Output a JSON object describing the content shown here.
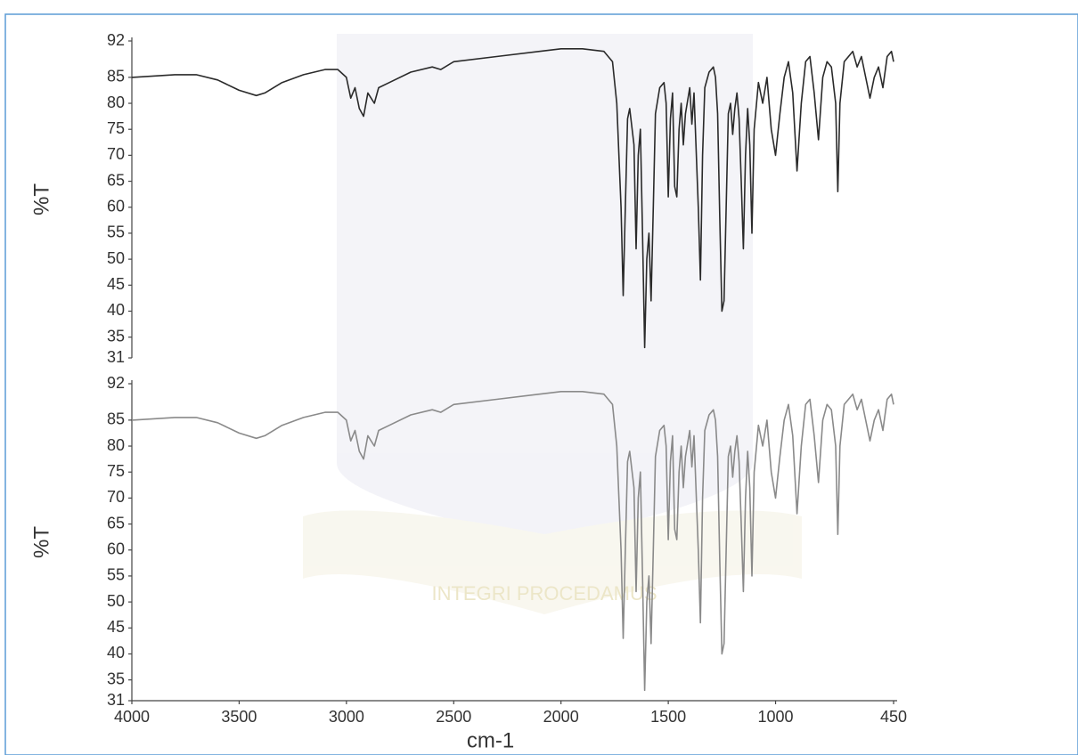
{
  "chart_data": [
    {
      "type": "line",
      "ylabel": "%T",
      "xlim": [
        4000,
        450
      ],
      "ylim": [
        31,
        92
      ],
      "yticks": [
        31,
        35,
        40,
        45,
        50,
        55,
        60,
        65,
        70,
        75,
        80,
        85,
        92
      ],
      "series": [
        {
          "color": "#2a2a2a",
          "x": [
            4000,
            3800,
            3700,
            3600,
            3500,
            3420,
            3380,
            3300,
            3200,
            3100,
            3040,
            3000,
            2980,
            2960,
            2940,
            2920,
            2900,
            2870,
            2850,
            2800,
            2700,
            2600,
            2560,
            2500,
            2300,
            2100,
            2000,
            1900,
            1800,
            1760,
            1740,
            1720,
            1710,
            1700,
            1690,
            1680,
            1660,
            1650,
            1640,
            1630,
            1620,
            1610,
            1600,
            1590,
            1580,
            1570,
            1560,
            1540,
            1520,
            1510,
            1500,
            1490,
            1480,
            1470,
            1460,
            1450,
            1440,
            1430,
            1420,
            1400,
            1390,
            1380,
            1360,
            1350,
            1340,
            1330,
            1310,
            1290,
            1280,
            1270,
            1260,
            1250,
            1240,
            1230,
            1220,
            1210,
            1200,
            1190,
            1180,
            1170,
            1160,
            1150,
            1140,
            1130,
            1120,
            1110,
            1100,
            1080,
            1060,
            1040,
            1020,
            1000,
            980,
            960,
            940,
            920,
            900,
            880,
            860,
            840,
            820,
            800,
            780,
            760,
            740,
            720,
            710,
            700,
            680,
            660,
            640,
            620,
            600,
            580,
            560,
            540,
            520,
            500,
            480,
            460,
            450
          ],
          "values": [
            85,
            85.5,
            85.5,
            84.5,
            82.5,
            81.5,
            82,
            84,
            85.5,
            86.5,
            86.5,
            85,
            81,
            83,
            79,
            77.5,
            82,
            80,
            83,
            84,
            86,
            87,
            86.5,
            88,
            89,
            90,
            90.5,
            90.5,
            90,
            88,
            80,
            60,
            43,
            60,
            77,
            79,
            72,
            52,
            70,
            75,
            55,
            33,
            50,
            55,
            42,
            60,
            78,
            83,
            84,
            80,
            62,
            77,
            82,
            64,
            62,
            75,
            80,
            72,
            78,
            83,
            76,
            82,
            60,
            46,
            70,
            83,
            86,
            87,
            85,
            78,
            58,
            40,
            42,
            60,
            78,
            80,
            74,
            79,
            82,
            77,
            65,
            52,
            70,
            79,
            72,
            55,
            75,
            84,
            80,
            85,
            75,
            70,
            78,
            85,
            88,
            82,
            67,
            80,
            88,
            89,
            82,
            73,
            85,
            88,
            87,
            80,
            63,
            80,
            88,
            89,
            90,
            87,
            89,
            85,
            81,
            85,
            87,
            83,
            89,
            90,
            88
          ]
        }
      ]
    },
    {
      "type": "line",
      "ylabel": "%T",
      "xlabel": "cm-1",
      "xlim": [
        4000,
        450
      ],
      "ylim": [
        31,
        92
      ],
      "xticks": [
        4000,
        3500,
        3000,
        2500,
        2000,
        1500,
        1000,
        450
      ],
      "yticks": [
        31,
        35,
        40,
        45,
        50,
        55,
        60,
        65,
        70,
        75,
        80,
        85,
        92
      ],
      "series": [
        {
          "color": "#8a8a8a",
          "x": [
            4000,
            3800,
            3700,
            3600,
            3500,
            3420,
            3380,
            3300,
            3200,
            3100,
            3040,
            3000,
            2980,
            2960,
            2940,
            2920,
            2900,
            2870,
            2850,
            2800,
            2700,
            2600,
            2560,
            2500,
            2300,
            2100,
            2000,
            1900,
            1800,
            1760,
            1740,
            1720,
            1710,
            1700,
            1690,
            1680,
            1660,
            1650,
            1640,
            1630,
            1620,
            1610,
            1600,
            1590,
            1580,
            1570,
            1560,
            1540,
            1520,
            1510,
            1500,
            1490,
            1480,
            1470,
            1460,
            1450,
            1440,
            1430,
            1420,
            1400,
            1390,
            1380,
            1360,
            1350,
            1340,
            1330,
            1310,
            1290,
            1280,
            1270,
            1260,
            1250,
            1240,
            1230,
            1220,
            1210,
            1200,
            1190,
            1180,
            1170,
            1160,
            1150,
            1140,
            1130,
            1120,
            1110,
            1100,
            1080,
            1060,
            1040,
            1020,
            1000,
            980,
            960,
            940,
            920,
            900,
            880,
            860,
            840,
            820,
            800,
            780,
            760,
            740,
            720,
            710,
            700,
            680,
            660,
            640,
            620,
            600,
            580,
            560,
            540,
            520,
            500,
            480,
            460,
            450
          ],
          "values": [
            85,
            85.5,
            85.5,
            84.5,
            82.5,
            81.5,
            82,
            84,
            85.5,
            86.5,
            86.5,
            85,
            81,
            83,
            79,
            77.5,
            82,
            80,
            83,
            84,
            86,
            87,
            86.5,
            88,
            89,
            90,
            90.5,
            90.5,
            90,
            88,
            80,
            60,
            43,
            60,
            77,
            79,
            72,
            52,
            70,
            75,
            55,
            33,
            50,
            55,
            42,
            60,
            78,
            83,
            84,
            80,
            62,
            77,
            82,
            64,
            62,
            75,
            80,
            72,
            78,
            83,
            76,
            82,
            60,
            46,
            70,
            83,
            86,
            87,
            85,
            78,
            58,
            40,
            42,
            60,
            78,
            80,
            74,
            79,
            82,
            77,
            65,
            52,
            70,
            79,
            72,
            55,
            75,
            84,
            80,
            85,
            75,
            70,
            78,
            85,
            88,
            82,
            67,
            80,
            88,
            89,
            82,
            73,
            85,
            88,
            87,
            80,
            63,
            80,
            88,
            89,
            90,
            87,
            89,
            85,
            81,
            85,
            87,
            83,
            89,
            90,
            88
          ]
        }
      ]
    }
  ],
  "watermark": "INTEGRI PROCEDAMUS"
}
